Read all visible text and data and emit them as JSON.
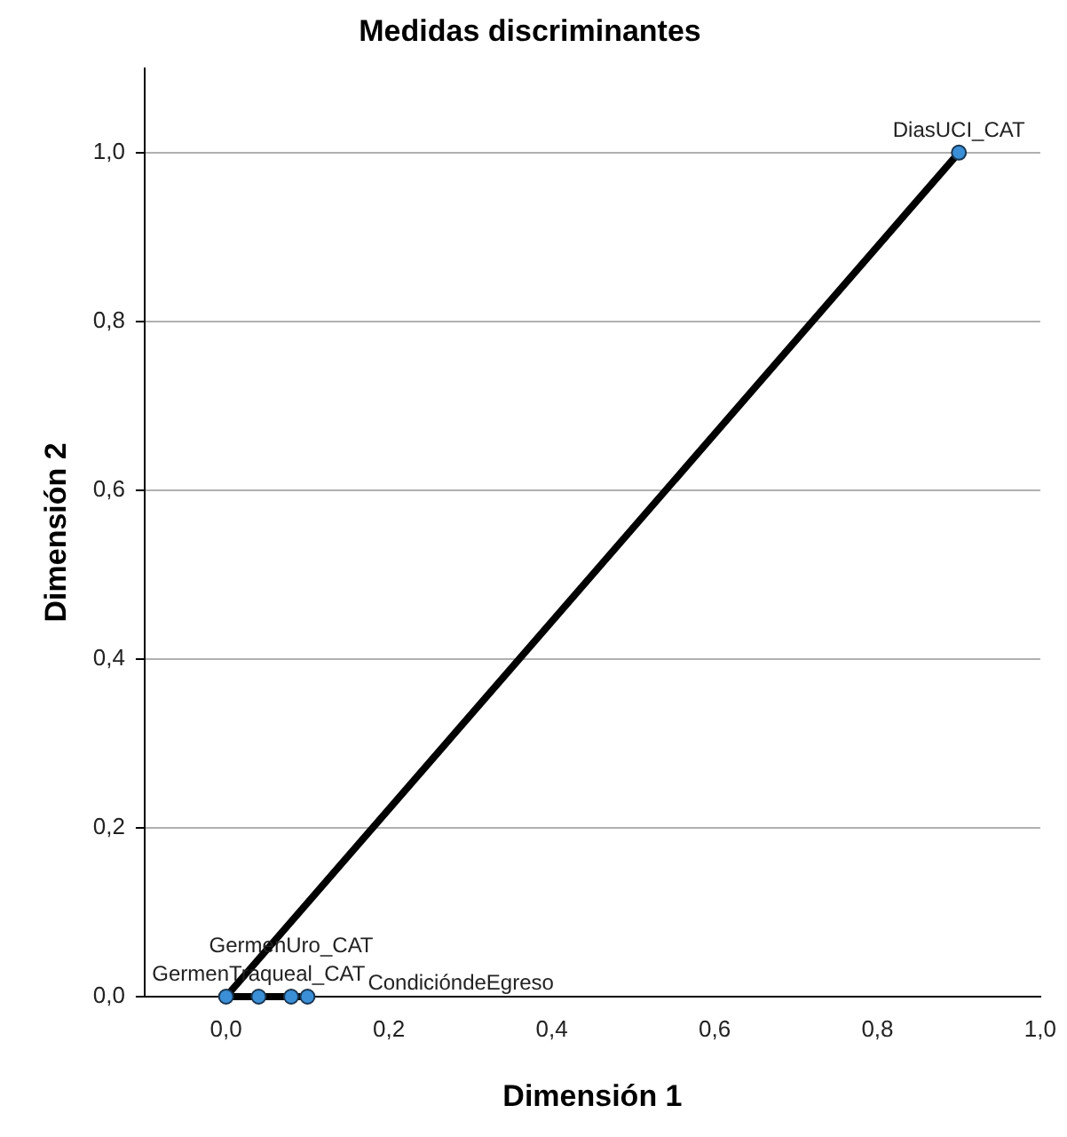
{
  "chart_data": {
    "type": "scatter",
    "title": "Medidas discriminantes",
    "xlabel": "Dimensión 1",
    "ylabel": "Dimensión 2",
    "xlim": [
      -0.1,
      1.0
    ],
    "ylim": [
      0,
      1.1
    ],
    "xticks": [
      {
        "value": 0,
        "label": "0,0"
      },
      {
        "value": 0.2,
        "label": "0,2"
      },
      {
        "value": 0.4,
        "label": "0,4"
      },
      {
        "value": 0.6,
        "label": "0,6"
      },
      {
        "value": 0.8,
        "label": "0,8"
      },
      {
        "value": 1.0,
        "label": "1,0"
      }
    ],
    "yticks": [
      {
        "value": 0,
        "label": "0,0"
      },
      {
        "value": 0.2,
        "label": "0,2"
      },
      {
        "value": 0.4,
        "label": "0,4"
      },
      {
        "value": 0.6,
        "label": "0,6"
      },
      {
        "value": 0.8,
        "label": "0,8"
      },
      {
        "value": 1.0,
        "label": "1,0"
      }
    ],
    "grid": "y",
    "legend": false,
    "marker": "circle",
    "series": [
      {
        "type": "line",
        "marker": "none",
        "color": "#000000",
        "x": [
          0,
          0.9
        ],
        "values": [
          0,
          1.0
        ]
      },
      {
        "type": "line",
        "marker": "none",
        "color": "#000000",
        "x": [
          0,
          0.1
        ],
        "values": [
          0,
          0
        ]
      },
      {
        "type": "scatter",
        "color": "#3a8fd6",
        "x": [
          0.9,
          0.0,
          0.04,
          0.08,
          0.1
        ],
        "values": [
          1.0,
          0,
          0,
          0,
          0
        ]
      }
    ],
    "annotations": [
      {
        "text": "DiasUCI_CAT",
        "x": 0.9,
        "y": 1.0
      },
      {
        "text": "GermenTraqueal_CAT",
        "x": 0.04,
        "y": 0
      },
      {
        "text": "GermenUro_CAT",
        "x": 0.08,
        "y": 0
      },
      {
        "text": "CondicióndeEgreso",
        "x": 0.1,
        "y": 0
      }
    ]
  }
}
